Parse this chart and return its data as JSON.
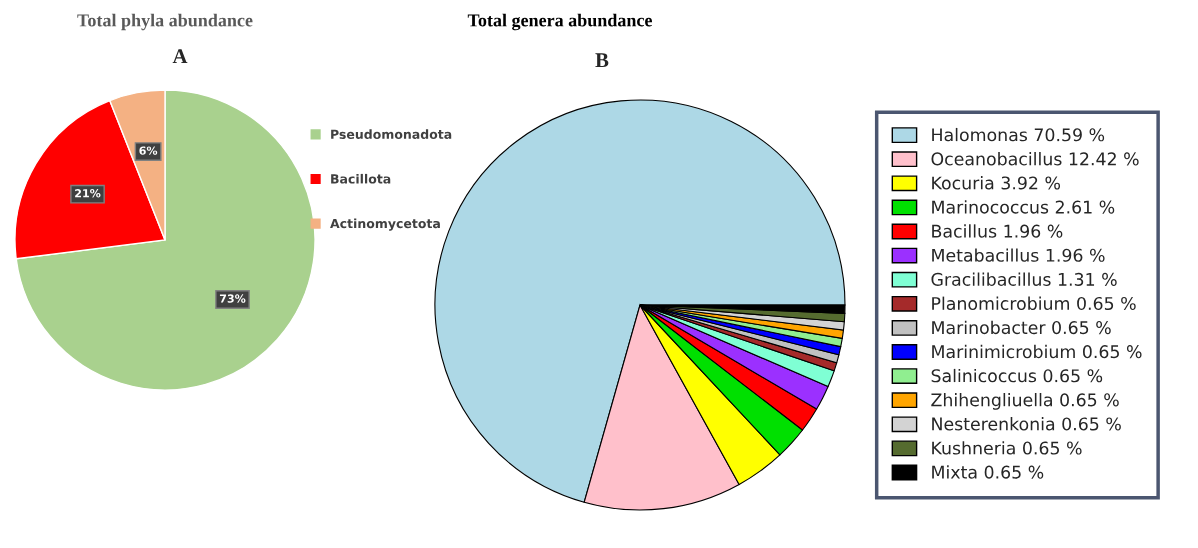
{
  "chart_data": [
    {
      "type": "pie",
      "title": "Total phyla abundance",
      "subtitle": "A",
      "categories": [
        "Pseudomonadota",
        "Bacillota",
        "Actinomycetota"
      ],
      "values": [
        73,
        21,
        6
      ],
      "value_labels": [
        "73%",
        "21%",
        "6%"
      ],
      "colors": [
        "#a9d18e",
        "#ff0000",
        "#f4b183"
      ],
      "legend": "right"
    },
    {
      "type": "pie",
      "title": "Total genera abundance",
      "subtitle": "B",
      "categories": [
        "Halomonas 70.59 %",
        "Oceanobacillus 12.42 %",
        "Kocuria 3.92 %",
        "Marinococcus 2.61 %",
        "Bacillus 1.96 %",
        "Metabacillus 1.96 %",
        "Gracilibacillus 1.31 %",
        "Planomicrobium 0.65 %",
        "Marinobacter 0.65 %",
        "Marinimicrobium 0.65 %",
        "Salinicoccus 0.65 %",
        "Zhihengliuella 0.65 %",
        "Nesterenkonia 0.65 %",
        "Kushneria 0.65 %",
        "Mixta 0.65 %"
      ],
      "values": [
        70.59,
        12.42,
        3.92,
        2.61,
        1.96,
        1.96,
        1.31,
        0.65,
        0.65,
        0.65,
        0.65,
        0.65,
        0.65,
        0.65,
        0.65
      ],
      "colors": [
        "#add8e6",
        "#ffc0cb",
        "#ffff00",
        "#00e000",
        "#ff0000",
        "#9b30ff",
        "#7fffd4",
        "#a52a2a",
        "#c0c0c0",
        "#0000ff",
        "#90ee90",
        "#ffa500",
        "#d3d3d3",
        "#556b2f",
        "#000000"
      ],
      "legend": "right"
    }
  ]
}
